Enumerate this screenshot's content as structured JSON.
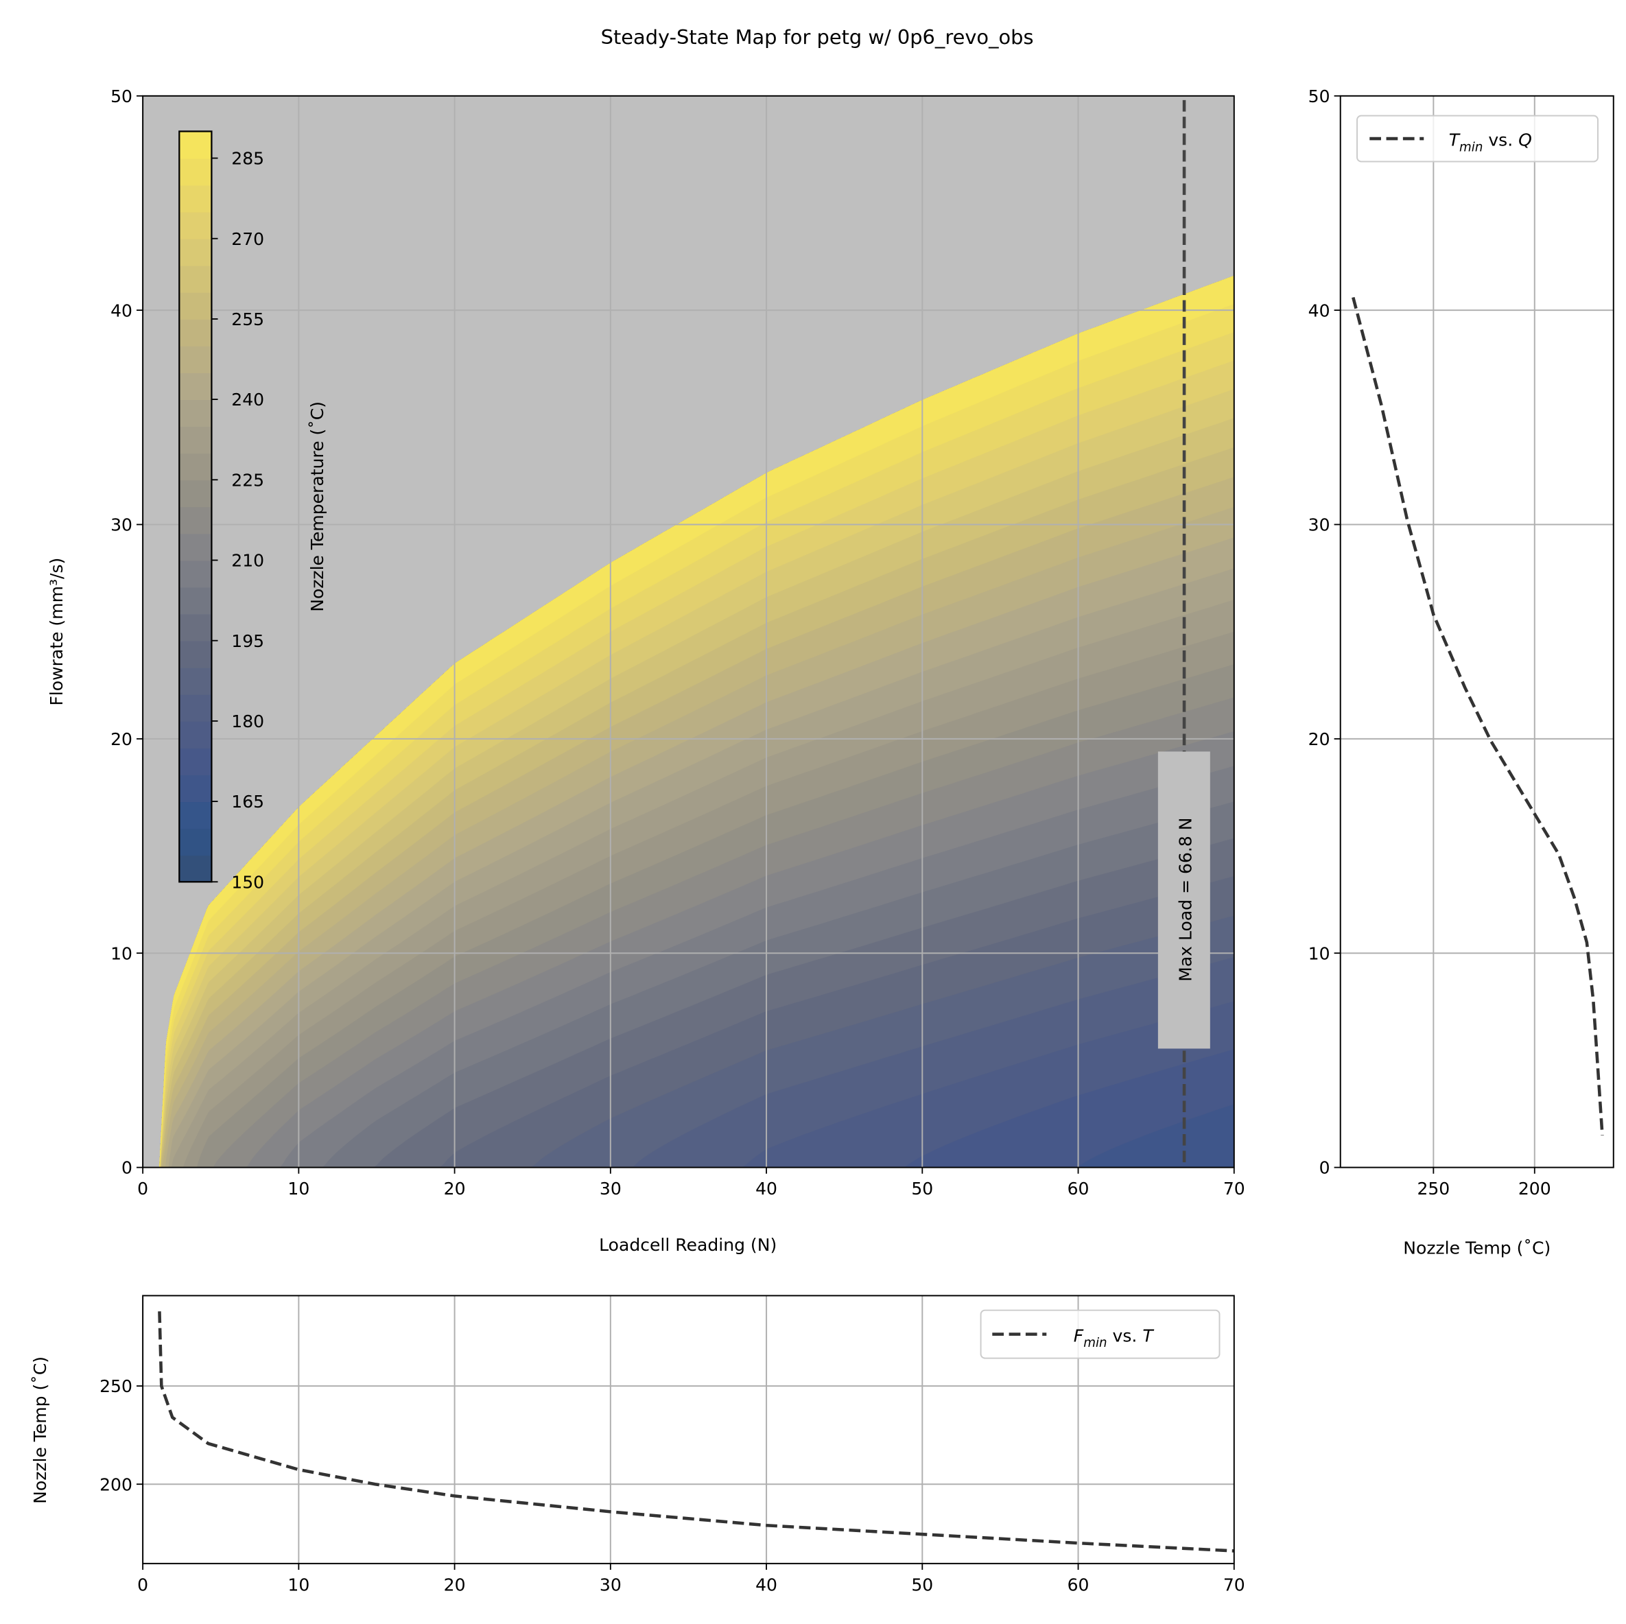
{
  "title": "Steady-State Map for petg w/ 0p6_revo_obs",
  "chart_data": [
    {
      "type": "heatmap",
      "subtype": "filled-contour",
      "xlabel": "Loadcell Reading (N)",
      "ylabel": "Flowrate (mm³/s)",
      "xlim": [
        0,
        70
      ],
      "ylim": [
        0,
        50
      ],
      "xticks": [
        "0",
        "10",
        "20",
        "30",
        "40",
        "50",
        "60",
        "70"
      ],
      "yticks": [
        "0",
        "10",
        "20",
        "30",
        "40",
        "50"
      ],
      "grid": true,
      "background_color": "#bfbfbf",
      "colormap": "cividis",
      "colorbar": {
        "label": "Nozzle Temperature (˚C)",
        "range": [
          150,
          290
        ],
        "level_step": 5,
        "ticks": [
          "150",
          "165",
          "180",
          "195",
          "210",
          "225",
          "240",
          "255",
          "270",
          "285"
        ],
        "placement": "upper-left inset"
      },
      "annotation": {
        "text": "Max Load = 66.8 N",
        "x": 66.8,
        "style": "dashed vertical line"
      }
    },
    {
      "type": "line",
      "legend": "T_min vs. Q",
      "legend_parts": {
        "sym": "T",
        "sub": "min",
        "rest": " vs. ",
        "var": "Q"
      },
      "legend_placement": "upper-left",
      "xlabel": "Nozzle Temp (˚C)",
      "xlim": [
        296,
        161
      ],
      "ylim": [
        0,
        50
      ],
      "xticks": [
        "250",
        "200"
      ],
      "yticks": [
        "0",
        "10",
        "20",
        "30",
        "40",
        "50"
      ],
      "grid": true,
      "color": "#333333",
      "style": "dashed",
      "points": [
        [
          289.7,
          40.6
        ],
        [
          275.8,
          35.6
        ],
        [
          262.9,
          30.2
        ],
        [
          250,
          25.8
        ],
        [
          234.5,
          22.4
        ],
        [
          221.6,
          19.9
        ],
        [
          200,
          16.5
        ],
        [
          188,
          14.6
        ],
        [
          180.4,
          12.6
        ],
        [
          174.2,
          10.5
        ],
        [
          171,
          7.8
        ],
        [
          168.6,
          4.4
        ],
        [
          166.5,
          1.5
        ]
      ]
    },
    {
      "type": "line",
      "legend": "F_min vs. T",
      "legend_parts": {
        "sym": "F",
        "sub": "min",
        "rest": " vs. ",
        "var": "T"
      },
      "legend_placement": "upper-right",
      "ylabel": "Nozzle Temp (˚C)",
      "xlim": [
        0,
        70
      ],
      "ylim": [
        159.6,
        296
      ],
      "xticks": [
        "0",
        "10",
        "20",
        "30",
        "40",
        "50",
        "60",
        "70"
      ],
      "yticks": [
        "200",
        "250"
      ],
      "grid": true,
      "color": "#333333",
      "style": "dashed",
      "points": [
        [
          1.07,
          288
        ],
        [
          1.2,
          250
        ],
        [
          1.9,
          234
        ],
        [
          4.2,
          220.7
        ],
        [
          10,
          207.4
        ],
        [
          14.9,
          200
        ],
        [
          20,
          194
        ],
        [
          30,
          186
        ],
        [
          40,
          179
        ],
        [
          50,
          174.5
        ],
        [
          60,
          170
        ],
        [
          70,
          166
        ]
      ]
    }
  ]
}
